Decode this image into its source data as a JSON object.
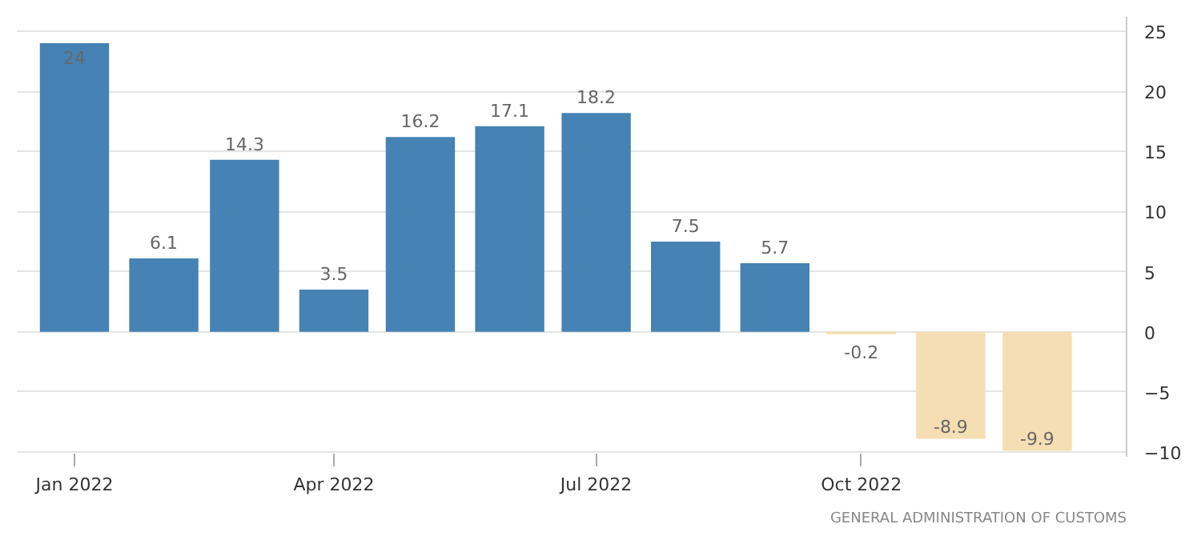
{
  "chart_data": {
    "type": "bar",
    "x": [
      "2022-01",
      "2022-02",
      "2022-03",
      "2022-04",
      "2022-05",
      "2022-06",
      "2022-07",
      "2022-08",
      "2022-09",
      "2022-10",
      "2022-11",
      "2022-12"
    ],
    "values": [
      24,
      6.1,
      14.3,
      3.5,
      16.2,
      17.1,
      18.2,
      7.5,
      5.7,
      -0.2,
      -8.9,
      -9.9
    ],
    "colors": [
      "#4682b4",
      "#4682b4",
      "#4682b4",
      "#4682b4",
      "#4682b4",
      "#4682b4",
      "#4682b4",
      "#4682b4",
      "#4682b4",
      "#f5deb3",
      "#f5deb3",
      "#f5deb3"
    ],
    "xlim": [
      "2021-12-12",
      "2023-01-01"
    ],
    "xticks": [
      {
        "value": "2022-01",
        "label": "Jan 2022"
      },
      {
        "value": "2022-04",
        "label": "Apr 2022"
      },
      {
        "value": "2022-07",
        "label": "Jul 2022"
      },
      {
        "value": "2022-10",
        "label": "Oct 2022"
      }
    ],
    "ylim": [
      -10.4,
      26.2
    ],
    "yticks": [
      -10,
      -5,
      0,
      5,
      10,
      15,
      20,
      25
    ],
    "grid": "y",
    "data_labels": true,
    "annotations": [
      "GENERAL ADMINISTRATION OF CUSTOMS"
    ]
  }
}
